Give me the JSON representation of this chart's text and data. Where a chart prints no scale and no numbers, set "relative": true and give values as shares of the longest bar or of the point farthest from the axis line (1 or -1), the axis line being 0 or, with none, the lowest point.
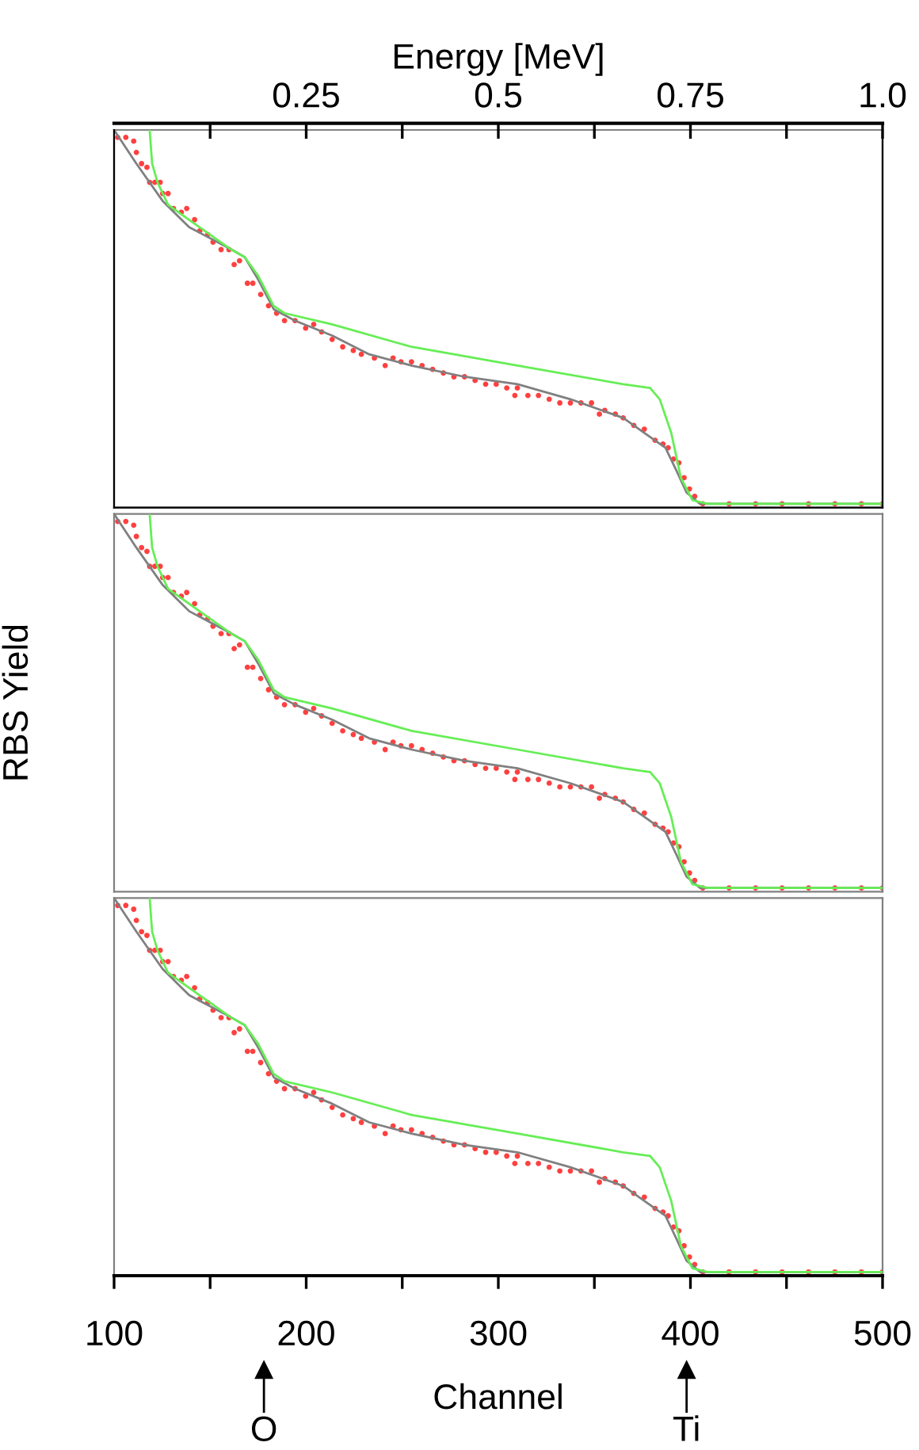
{
  "chart_data": [
    {
      "type": "scatter",
      "relative": true,
      "xlim": [
        100,
        500
      ],
      "tick_labels": false,
      "x2lim": [
        0,
        1.0
      ],
      "x2label": "Energy [MeV]",
      "x2ticks": [
        {
          "value": 0.125,
          "label": null
        },
        0.25,
        {
          "value": 0.375,
          "label": null
        },
        0.5,
        {
          "value": 0.625,
          "label": null
        },
        0.75,
        {
          "value": 0.875,
          "label": null
        },
        {
          "value": 1.0,
          "label": "1.0"
        }
      ],
      "series": [
        {
          "color": "#ff4040",
          "marker": "circle",
          "x": [
            101.9,
            106.1,
            110.2,
            111.6,
            114.3,
            117.1,
            118.5,
            121.2,
            124.0,
            125.3,
            128.1,
            130.9,
            135.0,
            137.8,
            141.9,
            144.6,
            148.8,
            151.5,
            155.7,
            159.8,
            162.5,
            165.3,
            169.4,
            172.2,
            176.3,
            180.4,
            184.6,
            188.7,
            194.2,
            199.7,
            203.9,
            208.0,
            213.5,
            219.0,
            224.5,
            228.7,
            235.5,
            241.1,
            245.2,
            249.3,
            254.8,
            260.3,
            265.8,
            271.4,
            276.9,
            282.4,
            287.9,
            293.4,
            298.9,
            304.4,
            308.6,
            309.9,
            315.4,
            320.9,
            326.5,
            332.0,
            337.5,
            343.0,
            348.5,
            352.6,
            355.4,
            360.9,
            365.0,
            370.5,
            376.0,
            381.6,
            385.7,
            388.4,
            391.2,
            394.0,
            396.7,
            399.5,
            402.2,
            406.4,
            420.1,
            433.9,
            447.7,
            461.5,
            475.2,
            489.0,
            500.0
          ],
          "values": [
            0.98,
            0.98,
            0.97,
            0.94,
            0.91,
            0.9,
            0.86,
            0.86,
            0.86,
            0.83,
            0.83,
            0.79,
            0.78,
            0.79,
            0.76,
            0.73,
            0.72,
            0.7,
            0.68,
            0.68,
            0.64,
            0.65,
            0.59,
            0.59,
            0.56,
            0.53,
            0.51,
            0.49,
            0.49,
            0.47,
            0.48,
            0.46,
            0.44,
            0.42,
            0.41,
            0.4,
            0.39,
            0.37,
            0.39,
            0.38,
            0.38,
            0.37,
            0.36,
            0.35,
            0.34,
            0.34,
            0.33,
            0.32,
            0.32,
            0.31,
            0.29,
            0.31,
            0.29,
            0.29,
            0.28,
            0.27,
            0.27,
            0.27,
            0.27,
            0.24,
            0.25,
            0.24,
            0.23,
            0.21,
            0.2,
            0.17,
            0.16,
            0.15,
            0.12,
            0.11,
            0.07,
            0.04,
            0.02,
            0.0,
            0.0,
            0.0,
            0.0,
            0.0,
            0.0,
            0.0,
            0.0
          ]
        },
        {
          "type": "line",
          "color": "#808080",
          "x": [
            100,
            111.6,
            125.3,
            139.1,
            161.2,
            168,
            175,
            183.2,
            194.2,
            213.5,
            232.8,
            254.8,
            282.4,
            310,
            337.5,
            354,
            365,
            376,
            387,
            392.6,
            398,
            405,
            500
          ],
          "values": [
            1.0,
            0.91,
            0.81,
            0.74,
            0.68,
            0.66,
            0.6,
            0.52,
            0.49,
            0.45,
            0.4,
            0.37,
            0.34,
            0.32,
            0.28,
            0.25,
            0.23,
            0.19,
            0.15,
            0.09,
            0.03,
            0.0,
            0.0
          ]
        },
        {
          "type": "line",
          "color": "#66ee55",
          "x": [
            118.5,
            119.8,
            122.6,
            128.1,
            139,
            161,
            168,
            175,
            183,
            188.7,
            213.5,
            254.8,
            310,
            365,
            379,
            384,
            390,
            395,
            401,
            409,
            500
          ],
          "values": [
            1.0,
            0.91,
            0.86,
            0.8,
            0.76,
            0.68,
            0.66,
            0.61,
            0.53,
            0.51,
            0.48,
            0.42,
            0.37,
            0.32,
            0.31,
            0.28,
            0.19,
            0.07,
            0.01,
            0.0,
            0.0
          ]
        }
      ]
    },
    {
      "type": "scatter",
      "relative": true,
      "xlim": [
        100,
        500
      ],
      "tick_labels": false,
      "ylabel": "RBS Yield",
      "series": [
        {
          "color": "#ff4040",
          "marker": "circle",
          "x": [
            101.9,
            106.1,
            110.2,
            111.6,
            114.3,
            117.1,
            118.5,
            121.2,
            124.0,
            125.3,
            128.1,
            130.9,
            135.0,
            137.8,
            141.9,
            144.6,
            148.8,
            151.5,
            155.7,
            159.8,
            162.5,
            165.3,
            169.4,
            172.2,
            176.3,
            180.4,
            184.6,
            188.7,
            194.2,
            199.7,
            203.9,
            208.0,
            213.5,
            219.0,
            224.5,
            228.7,
            235.5,
            241.1,
            245.2,
            249.3,
            254.8,
            260.3,
            265.8,
            271.4,
            276.9,
            282.4,
            287.9,
            293.4,
            298.9,
            304.4,
            308.6,
            309.9,
            315.4,
            320.9,
            326.5,
            332.0,
            337.5,
            343.0,
            348.5,
            352.6,
            355.4,
            360.9,
            365.0,
            370.5,
            376.0,
            381.6,
            385.7,
            388.4,
            391.2,
            394.0,
            396.7,
            399.5,
            402.2,
            406.4,
            420.1,
            433.9,
            447.7,
            461.5,
            475.2,
            489.0,
            500.0
          ],
          "values": [
            0.98,
            0.98,
            0.97,
            0.94,
            0.91,
            0.9,
            0.86,
            0.86,
            0.86,
            0.83,
            0.83,
            0.79,
            0.78,
            0.79,
            0.76,
            0.73,
            0.72,
            0.7,
            0.68,
            0.68,
            0.64,
            0.65,
            0.59,
            0.59,
            0.56,
            0.53,
            0.51,
            0.49,
            0.49,
            0.47,
            0.48,
            0.46,
            0.44,
            0.42,
            0.41,
            0.4,
            0.39,
            0.37,
            0.39,
            0.38,
            0.38,
            0.37,
            0.36,
            0.35,
            0.34,
            0.34,
            0.33,
            0.32,
            0.32,
            0.31,
            0.29,
            0.31,
            0.29,
            0.29,
            0.28,
            0.27,
            0.27,
            0.27,
            0.27,
            0.24,
            0.25,
            0.24,
            0.23,
            0.21,
            0.2,
            0.17,
            0.16,
            0.15,
            0.12,
            0.11,
            0.07,
            0.04,
            0.02,
            0.0,
            0.0,
            0.0,
            0.0,
            0.0,
            0.0,
            0.0,
            0.0
          ]
        },
        {
          "type": "line",
          "color": "#808080",
          "x": [
            100,
            111.6,
            125.3,
            139.1,
            161.2,
            168,
            175,
            183.2,
            194.2,
            213.5,
            232.8,
            254.8,
            282.4,
            310,
            337.5,
            354,
            365,
            376,
            387,
            392.6,
            398,
            405,
            500
          ],
          "values": [
            1.0,
            0.91,
            0.81,
            0.74,
            0.68,
            0.66,
            0.6,
            0.52,
            0.49,
            0.45,
            0.4,
            0.37,
            0.34,
            0.32,
            0.28,
            0.25,
            0.23,
            0.19,
            0.15,
            0.09,
            0.03,
            0.0,
            0.0
          ]
        },
        {
          "type": "line",
          "color": "#66ee55",
          "x": [
            118.5,
            119.8,
            122.6,
            128.1,
            139,
            161,
            168,
            175,
            183,
            188.7,
            213.5,
            254.8,
            310,
            365,
            379,
            384,
            390,
            395,
            401,
            409,
            500
          ],
          "values": [
            1.0,
            0.91,
            0.86,
            0.8,
            0.76,
            0.68,
            0.66,
            0.61,
            0.53,
            0.51,
            0.48,
            0.42,
            0.37,
            0.32,
            0.31,
            0.28,
            0.19,
            0.07,
            0.01,
            0.0,
            0.0
          ]
        }
      ]
    },
    {
      "type": "scatter",
      "relative": true,
      "xlim": [
        100,
        500
      ],
      "tick_labels": "x",
      "xlabel": "Channel",
      "xticks": [
        100,
        {
          "value": 150,
          "label": null
        },
        200,
        {
          "value": 250,
          "label": null
        },
        300,
        {
          "value": 350,
          "label": null
        },
        400,
        {
          "value": 450,
          "label": null
        },
        500
      ],
      "annotations": [
        {
          "text": "O",
          "x": 178
        },
        {
          "text": "Ti",
          "x": 398
        }
      ],
      "series": [
        {
          "color": "#ff4040",
          "marker": "circle",
          "x": [
            101.9,
            106.1,
            110.2,
            111.6,
            114.3,
            117.1,
            118.5,
            121.2,
            124.0,
            125.3,
            128.1,
            130.9,
            135.0,
            137.8,
            141.9,
            144.6,
            148.8,
            151.5,
            155.7,
            159.8,
            162.5,
            165.3,
            169.4,
            172.2,
            176.3,
            180.4,
            184.6,
            188.7,
            194.2,
            199.7,
            203.9,
            208.0,
            213.5,
            219.0,
            224.5,
            228.7,
            235.5,
            241.1,
            245.2,
            249.3,
            254.8,
            260.3,
            265.8,
            271.4,
            276.9,
            282.4,
            287.9,
            293.4,
            298.9,
            304.4,
            308.6,
            309.9,
            315.4,
            320.9,
            326.5,
            332.0,
            337.5,
            343.0,
            348.5,
            352.6,
            355.4,
            360.9,
            365.0,
            370.5,
            376.0,
            381.6,
            385.7,
            388.4,
            391.2,
            394.0,
            396.7,
            399.5,
            402.2,
            406.4,
            420.1,
            433.9,
            447.7,
            461.5,
            475.2,
            489.0,
            500.0
          ],
          "values": [
            0.98,
            0.98,
            0.97,
            0.94,
            0.91,
            0.9,
            0.86,
            0.86,
            0.86,
            0.83,
            0.83,
            0.79,
            0.78,
            0.79,
            0.76,
            0.73,
            0.72,
            0.7,
            0.68,
            0.68,
            0.64,
            0.65,
            0.59,
            0.59,
            0.56,
            0.53,
            0.51,
            0.49,
            0.49,
            0.47,
            0.48,
            0.46,
            0.44,
            0.42,
            0.41,
            0.4,
            0.39,
            0.37,
            0.39,
            0.38,
            0.38,
            0.37,
            0.36,
            0.35,
            0.34,
            0.34,
            0.33,
            0.32,
            0.32,
            0.31,
            0.29,
            0.31,
            0.29,
            0.29,
            0.28,
            0.27,
            0.27,
            0.27,
            0.27,
            0.24,
            0.25,
            0.24,
            0.23,
            0.21,
            0.2,
            0.17,
            0.16,
            0.15,
            0.12,
            0.11,
            0.07,
            0.04,
            0.02,
            0.0,
            0.0,
            0.0,
            0.0,
            0.0,
            0.0,
            0.0,
            0.0
          ]
        },
        {
          "type": "line",
          "color": "#808080",
          "x": [
            100,
            111.6,
            125.3,
            139.1,
            161.2,
            168,
            175,
            183.2,
            194.2,
            213.5,
            232.8,
            254.8,
            282.4,
            310,
            337.5,
            354,
            365,
            376,
            387,
            392.6,
            398,
            405,
            500
          ],
          "values": [
            1.0,
            0.91,
            0.81,
            0.74,
            0.68,
            0.66,
            0.6,
            0.52,
            0.49,
            0.45,
            0.4,
            0.37,
            0.34,
            0.32,
            0.28,
            0.25,
            0.23,
            0.19,
            0.15,
            0.09,
            0.03,
            0.0,
            0.0
          ]
        },
        {
          "type": "line",
          "color": "#66ee55",
          "x": [
            118.5,
            119.8,
            122.6,
            128.1,
            139,
            161,
            168,
            175,
            183,
            188.7,
            213.5,
            254.8,
            310,
            365,
            379,
            384,
            390,
            395,
            401,
            409,
            500
          ],
          "values": [
            1.0,
            0.91,
            0.86,
            0.8,
            0.76,
            0.68,
            0.66,
            0.61,
            0.53,
            0.51,
            0.48,
            0.42,
            0.37,
            0.32,
            0.31,
            0.28,
            0.19,
            0.07,
            0.01,
            0.0,
            0.0
          ]
        }
      ]
    }
  ]
}
